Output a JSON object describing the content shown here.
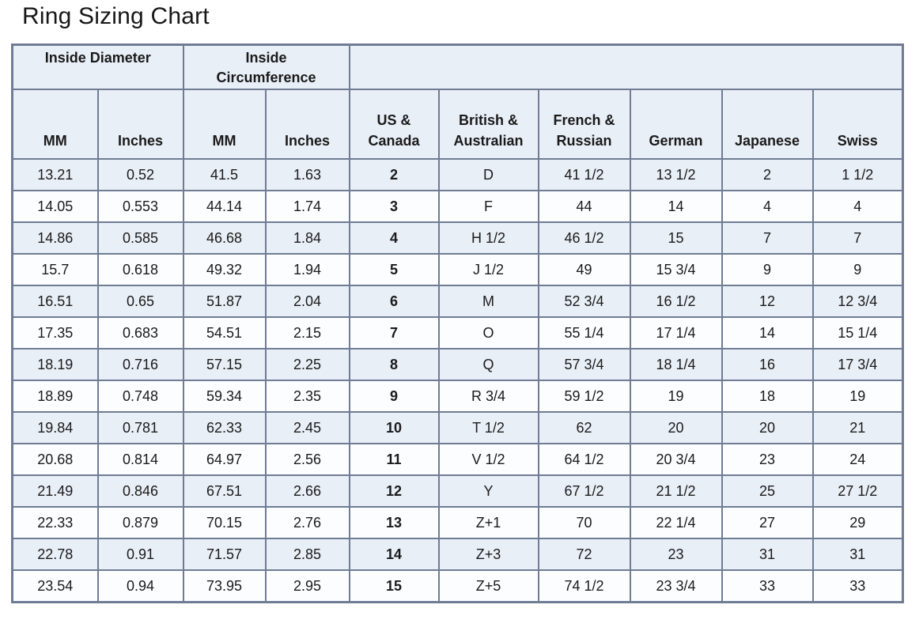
{
  "title": "Ring Sizing Chart",
  "table": {
    "group_headers": [
      {
        "lines": [
          "Inside Diameter"
        ],
        "colspan": 2
      },
      {
        "lines": [
          "Inside",
          "Circumference"
        ],
        "colspan": 2
      },
      {
        "lines": [],
        "colspan": 6
      }
    ],
    "column_headers": [
      {
        "lines": [
          "MM"
        ]
      },
      {
        "lines": [
          "Inches"
        ]
      },
      {
        "lines": [
          "MM"
        ]
      },
      {
        "lines": [
          "Inches"
        ]
      },
      {
        "lines": [
          "US &",
          "Canada"
        ]
      },
      {
        "lines": [
          "British &",
          "Australian"
        ]
      },
      {
        "lines": [
          "French &",
          "Russian"
        ]
      },
      {
        "lines": [
          "German"
        ]
      },
      {
        "lines": [
          "Japanese"
        ]
      },
      {
        "lines": [
          "Swiss"
        ]
      }
    ],
    "rows": [
      [
        "13.21",
        "0.52",
        "41.5",
        "1.63",
        "2",
        "D",
        "41 1/2",
        "13 1/2",
        "2",
        "1 1/2"
      ],
      [
        "14.05",
        "0.553",
        "44.14",
        "1.74",
        "3",
        "F",
        "44",
        "14",
        "4",
        "4"
      ],
      [
        "14.86",
        "0.585",
        "46.68",
        "1.84",
        "4",
        "H 1/2",
        "46 1/2",
        "15",
        "7",
        "7"
      ],
      [
        "15.7",
        "0.618",
        "49.32",
        "1.94",
        "5",
        "J 1/2",
        "49",
        "15 3/4",
        "9",
        "9"
      ],
      [
        "16.51",
        "0.65",
        "51.87",
        "2.04",
        "6",
        "M",
        "52 3/4",
        "16 1/2",
        "12",
        "12 3/4"
      ],
      [
        "17.35",
        "0.683",
        "54.51",
        "2.15",
        "7",
        "O",
        "55 1/4",
        "17 1/4",
        "14",
        "15 1/4"
      ],
      [
        "18.19",
        "0.716",
        "57.15",
        "2.25",
        "8",
        "Q",
        "57 3/4",
        "18 1/4",
        "16",
        "17 3/4"
      ],
      [
        "18.89",
        "0.748",
        "59.34",
        "2.35",
        "9",
        "R 3/4",
        "59 1/2",
        "19",
        "18",
        "19"
      ],
      [
        "19.84",
        "0.781",
        "62.33",
        "2.45",
        "10",
        "T 1/2",
        "62",
        "20",
        "20",
        "21"
      ],
      [
        "20.68",
        "0.814",
        "64.97",
        "2.56",
        "11",
        "V 1/2",
        "64 1/2",
        "20 3/4",
        "23",
        "24"
      ],
      [
        "21.49",
        "0.846",
        "67.51",
        "2.66",
        "12",
        "Y",
        "67 1/2",
        "21 1/2",
        "25",
        "27 1/2"
      ],
      [
        "22.33",
        "0.879",
        "70.15",
        "2.76",
        "13",
        "Z+1",
        "70",
        "22 1/4",
        "27",
        "29"
      ],
      [
        "22.78",
        "0.91",
        "71.57",
        "2.85",
        "14",
        "Z+3",
        "72",
        "23",
        "31",
        "31"
      ],
      [
        "23.54",
        "0.94",
        "73.95",
        "2.95",
        "15",
        "Z+5",
        "74 1/2",
        "23 3/4",
        "33",
        "33"
      ]
    ]
  },
  "colors": {
    "border": "#6f7c94",
    "header_bg": "#e9eff7",
    "row_stripe_bg": "#e9eff7",
    "row_bg": "#fcfdff",
    "text": "#1a1a1a"
  }
}
